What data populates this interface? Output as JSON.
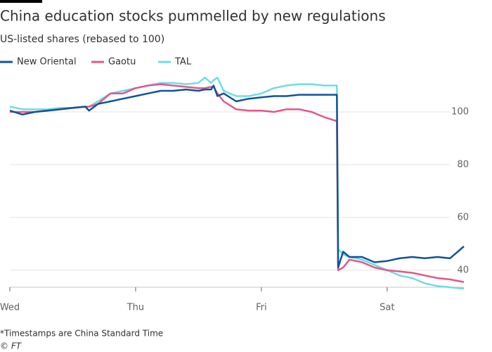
{
  "chart_data": {
    "type": "line",
    "title": "China education stocks pummelled by new regulations",
    "subtitle": "US-listed shares (rebased to 100)",
    "footnote": "*Timestamps are China Standard Time",
    "source": "© FT",
    "x": [
      0,
      0.1,
      0.2,
      0.3,
      0.4,
      0.5,
      0.6,
      0.63,
      0.7,
      0.8,
      0.9,
      1.0,
      1.1,
      1.2,
      1.3,
      1.4,
      1.5,
      1.55,
      1.6,
      1.62,
      1.65,
      1.7,
      1.8,
      1.9,
      2.0,
      2.1,
      2.2,
      2.3,
      2.4,
      2.5,
      2.6,
      2.61,
      2.65,
      2.7,
      2.8,
      2.9,
      3.0,
      3.1,
      3.2,
      3.3,
      3.4,
      3.5,
      3.61
    ],
    "series": [
      {
        "name": "New Oriental",
        "color": "#0f5499",
        "values": [
          100.5,
          99,
          100,
          100.5,
          101,
          101.5,
          102,
          100.5,
          103,
          104,
          105,
          106,
          107,
          108,
          108,
          108.5,
          108,
          108.5,
          108.5,
          110,
          106,
          107,
          104,
          105,
          105.5,
          106,
          106,
          106.5,
          106.5,
          106.5,
          106.5,
          41,
          47,
          45,
          45,
          43,
          43.5,
          44.5,
          45,
          44.5,
          45,
          44.5,
          49
        ]
      },
      {
        "name": "Gaotu",
        "color": "#e3578a",
        "values": [
          100,
          100,
          100,
          100.5,
          101,
          101.5,
          102,
          102,
          103,
          107,
          107,
          109,
          110,
          110.5,
          110,
          109.5,
          109,
          109,
          109.5,
          109.5,
          107,
          104,
          101,
          100.5,
          100.5,
          100,
          101,
          101,
          100,
          98,
          96.5,
          40,
          41,
          44,
          43,
          41,
          40,
          39.5,
          39,
          38,
          37,
          36.5,
          35.5
        ]
      },
      {
        "name": "TAL",
        "color": "#6fdde3",
        "values": [
          102,
          101,
          101,
          101,
          101.5,
          101.5,
          102,
          102,
          104,
          107,
          108,
          109,
          110,
          111,
          111,
          110.5,
          111,
          113,
          111,
          112,
          113,
          108,
          106,
          106,
          107,
          109,
          110,
          110.5,
          110.5,
          110,
          110,
          48,
          46,
          45,
          44,
          42,
          40,
          38,
          37,
          35,
          34,
          33.5,
          33
        ]
      }
    ],
    "xlim": [
      0,
      3.61
    ],
    "xticks": [
      {
        "value": 0,
        "label": "Wed"
      },
      {
        "value": 1,
        "label": "Thu"
      },
      {
        "value": 2,
        "label": "Fri"
      },
      {
        "value": 3,
        "label": "Sat"
      }
    ],
    "ylim": [
      33,
      116
    ],
    "yticks": [
      40,
      60,
      80,
      100
    ],
    "grid": true
  }
}
